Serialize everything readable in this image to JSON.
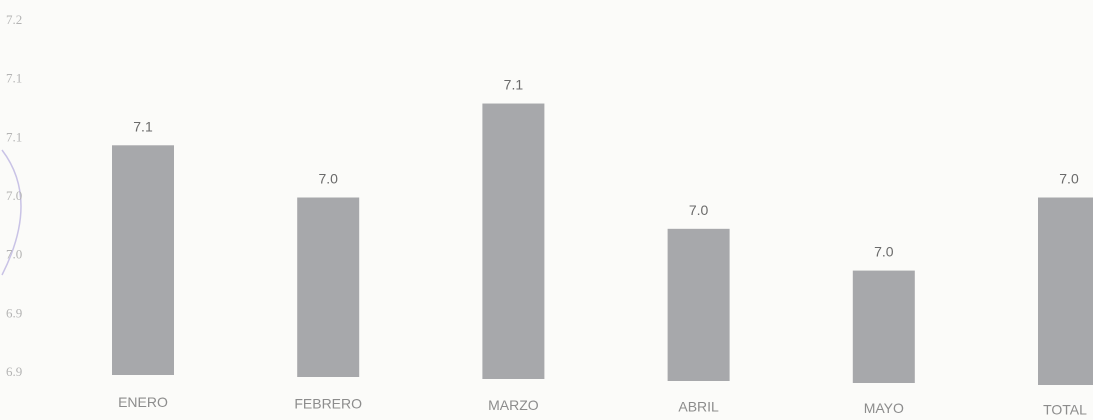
{
  "chart_data": {
    "type": "bar",
    "title": "",
    "xlabel": "",
    "ylabel": "",
    "categories": [
      "ENERO",
      "FEBRERO",
      "MARZO",
      "ABRIL",
      "MAYO",
      "TOTAL"
    ],
    "values": [
      7.08,
      7.03,
      7.12,
      7.0,
      6.96,
      7.03
    ],
    "data_labels": [
      "7.1",
      "7.0",
      "7.1",
      "7.0",
      "7.0",
      "7.0"
    ],
    "y_tick_labels": [
      "7.2",
      "7.1",
      "7.1",
      "7.0",
      "7.0",
      "6.9",
      "6.9"
    ],
    "ylim": [
      6.86,
      7.2
    ],
    "grid": false,
    "legend": "none",
    "colors": {
      "bar": "#a7a8ab",
      "background": "#fbfbf9"
    }
  }
}
